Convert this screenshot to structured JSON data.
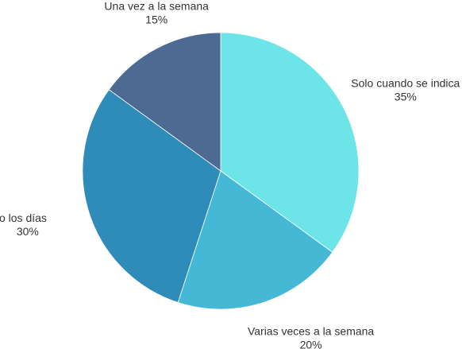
{
  "chart_data": {
    "type": "pie",
    "title": "",
    "slices": [
      {
        "label": "Solo cuando se indica",
        "value": 35,
        "value_label": "35%",
        "color": "#6ce4e8"
      },
      {
        "label": "Varias veces a la semana",
        "value": 20,
        "value_label": "20%",
        "color": "#45b8d6"
      },
      {
        "label": "Todo los días",
        "value": 30,
        "value_label": "30%",
        "color": "#2f8bb8"
      },
      {
        "label": "Una vez a la semana",
        "value": 15,
        "value_label": "15%",
        "color": "#4d6a93"
      }
    ],
    "start_angle_deg": 0,
    "direction": "clockwise",
    "legend": "none"
  }
}
